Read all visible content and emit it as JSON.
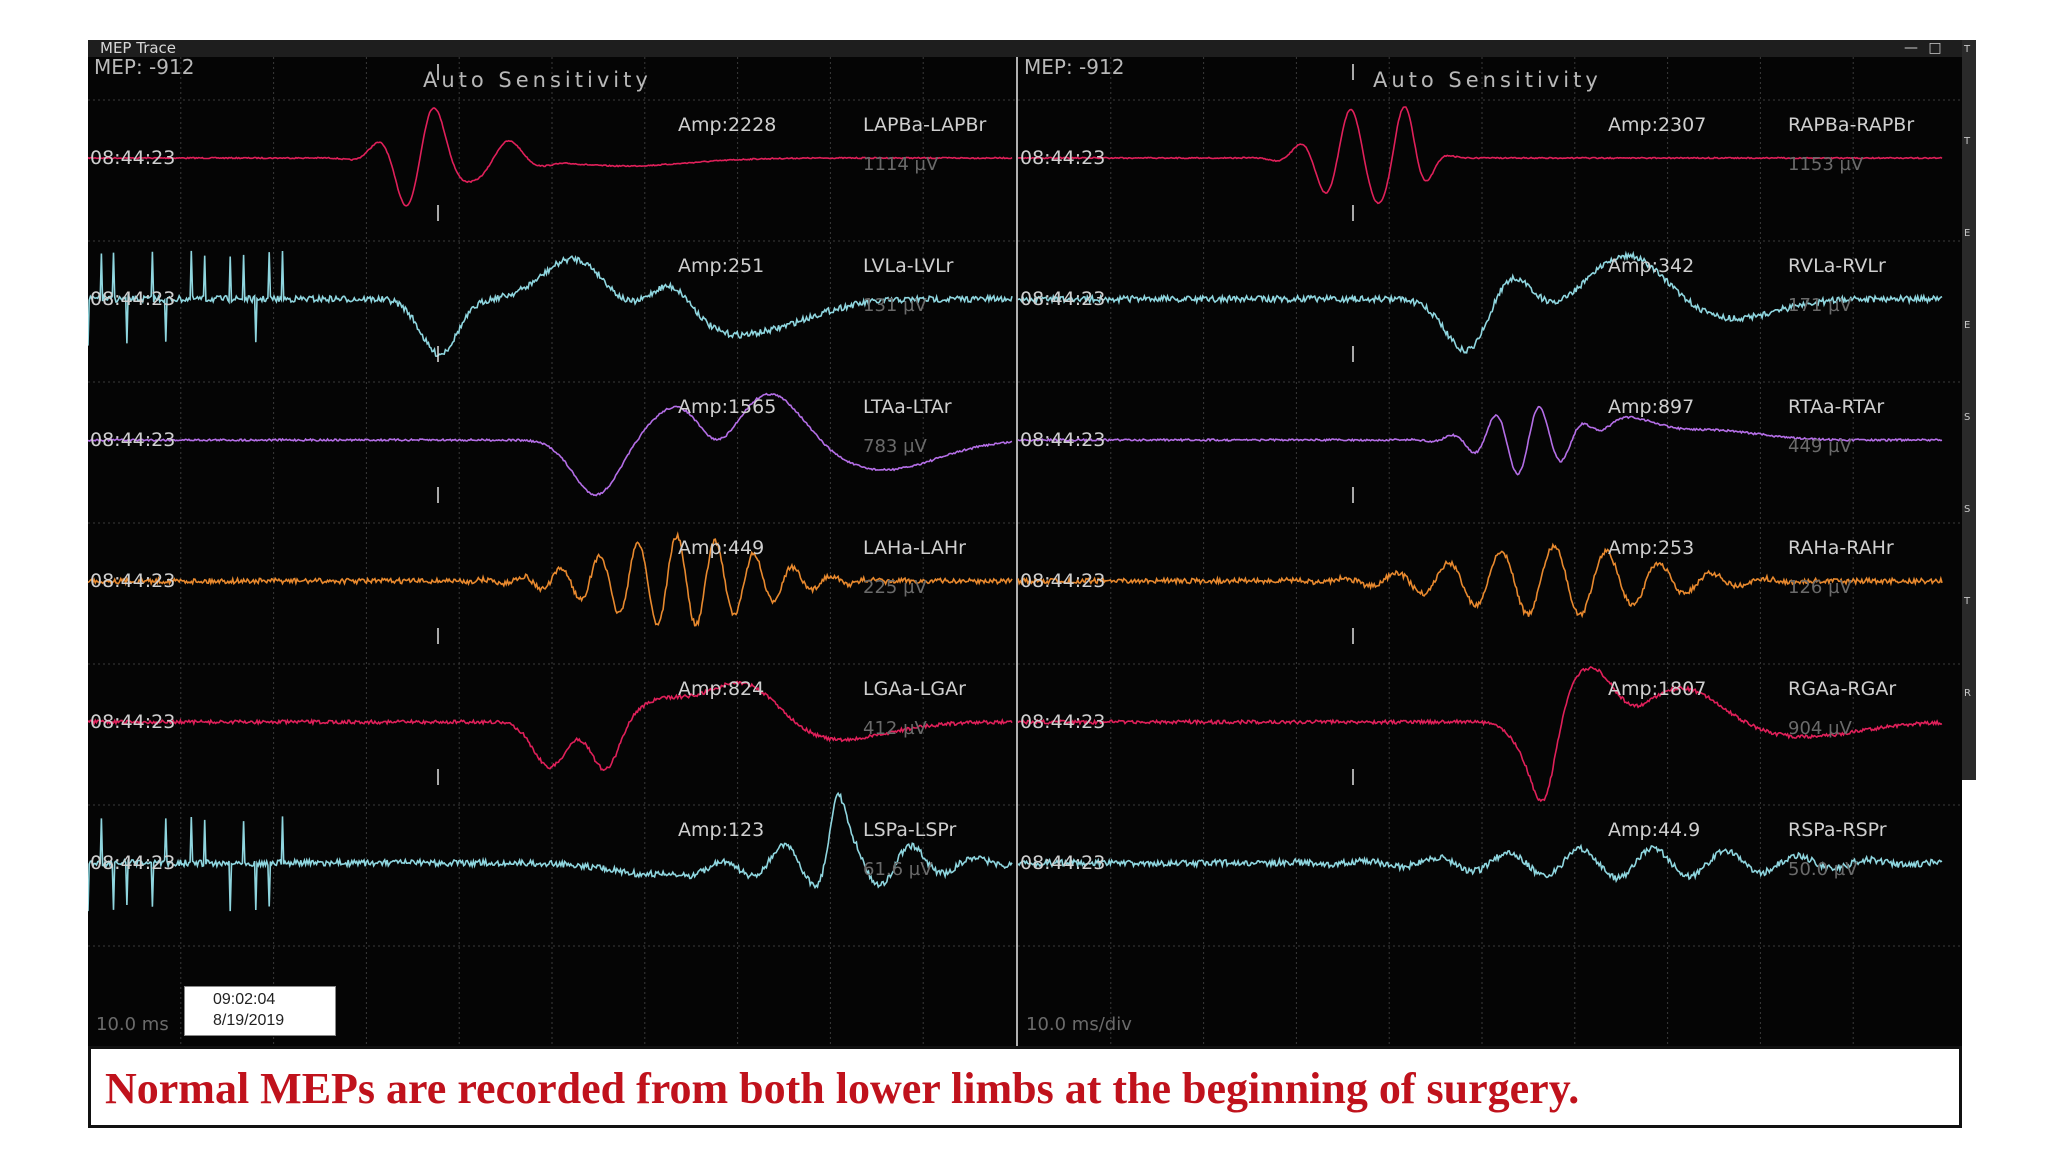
{
  "window": {
    "title": "MEP Trace",
    "minimize_icon": "minimize-icon",
    "maximize_icon": "maximize-icon"
  },
  "colors": {
    "background": "#050505",
    "grid": "#3a3a3a",
    "divider": "#b0b0b0",
    "header_text": "#b8b8b8",
    "label_text": "#cfcfcf",
    "dim_text": "#6a6a6a",
    "caption": "#c0121c"
  },
  "panels": [
    {
      "side": "left",
      "header_left": "MEP: -912",
      "header_center": "Auto Sensitivity",
      "footer_scale": "10.0 ms",
      "channels": [
        {
          "time": "08:44:23",
          "amp": "Amp:2228",
          "name": "LAPBa-LAPBr",
          "sens": "1114 µV",
          "color": "#e0205a"
        },
        {
          "time": "08:44:23",
          "amp": "Amp:251",
          "name": "LVLa-LVLr",
          "sens": "131 µV",
          "color": "#8fd6df"
        },
        {
          "time": "08:44:23",
          "amp": "Amp:1565",
          "name": "LTAa-LTAr",
          "sens": "783 µV",
          "color": "#b46ee6"
        },
        {
          "time": "08:44:23",
          "amp": "Amp:449",
          "name": "LAHa-LAHr",
          "sens": "225 µV",
          "color": "#e8892e"
        },
        {
          "time": "08:44:23",
          "amp": "Amp:824",
          "name": "LGAa-LGAr",
          "sens": "412 µV",
          "color": "#e0205a"
        },
        {
          "time": "08:44:23",
          "amp": "Amp:123",
          "name": "LSPa-LSPr",
          "sens": "61.6 µV",
          "color": "#8fd6df"
        }
      ]
    },
    {
      "side": "right",
      "header_left": "MEP: -912",
      "header_center": "Auto Sensitivity",
      "footer_scale": "10.0 ms/div",
      "channels": [
        {
          "time": "08:44:23",
          "amp": "Amp:2307",
          "name": "RAPBa-RAPBr",
          "sens": "1153 µV",
          "color": "#e0205a"
        },
        {
          "time": "08:44:23",
          "amp": "Amp:342",
          "name": "RVLa-RVLr",
          "sens": "171 µV",
          "color": "#8fd6df"
        },
        {
          "time": "08:44:23",
          "amp": "Amp:897",
          "name": "RTAa-RTAr",
          "sens": "449 µV",
          "color": "#b46ee6"
        },
        {
          "time": "08:44:23",
          "amp": "Amp:253",
          "name": "RAHa-RAHr",
          "sens": "126 µV",
          "color": "#e8892e"
        },
        {
          "time": "08:44:23",
          "amp": "Amp:1807",
          "name": "RGAa-RGAr",
          "sens": "904 µV",
          "color": "#e0205a"
        },
        {
          "time": "08:44:23",
          "amp": "Amp:44.9",
          "name": "RSPa-RSPr",
          "sens": "50.0 µV",
          "color": "#8fd6df"
        }
      ]
    }
  ],
  "timestamp": {
    "time": "09:02:04",
    "date": "8/19/2019"
  },
  "caption": "Normal MEPs are recorded from both lower limbs at the beginning of  surgery."
}
